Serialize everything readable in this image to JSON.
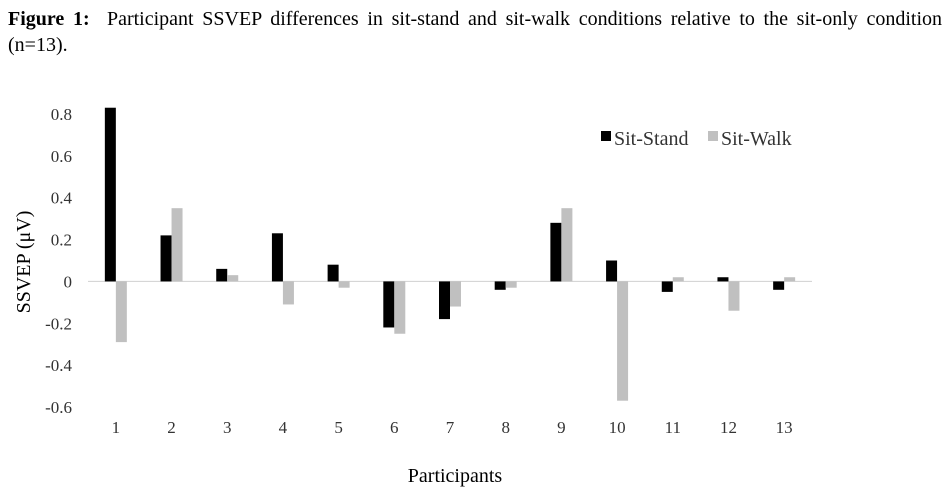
{
  "figure": {
    "label": "Figure 1:",
    "caption": "Participant SSVEP differences in sit-stand and sit-walk conditions relative to the sit-only condition (n=13)."
  },
  "chart_data": {
    "type": "bar",
    "title": "",
    "xlabel": "Participants",
    "ylabel": "SSVEP (μV)",
    "categories": [
      "1",
      "2",
      "3",
      "4",
      "5",
      "6",
      "7",
      "8",
      "9",
      "10",
      "11",
      "12",
      "13"
    ],
    "series": [
      {
        "name": "Sit-Stand",
        "color": "#000000",
        "values": [
          0.83,
          0.22,
          0.06,
          0.23,
          0.08,
          -0.22,
          -0.18,
          -0.04,
          0.28,
          0.1,
          -0.05,
          0.02,
          -0.04
        ]
      },
      {
        "name": "Sit-Walk",
        "color": "#c0c0c0",
        "values": [
          -0.29,
          0.35,
          0.03,
          -0.11,
          -0.03,
          -0.25,
          -0.12,
          -0.03,
          0.35,
          -0.57,
          0.02,
          -0.14,
          0.02
        ]
      }
    ],
    "ylim": [
      -0.6,
      0.8
    ],
    "yticks": [
      "-0.6",
      "-0.4",
      "-0.2",
      "0",
      "0.2",
      "0.4",
      "0.6",
      "0.8"
    ],
    "grid": false,
    "legend_position": "top-right"
  }
}
